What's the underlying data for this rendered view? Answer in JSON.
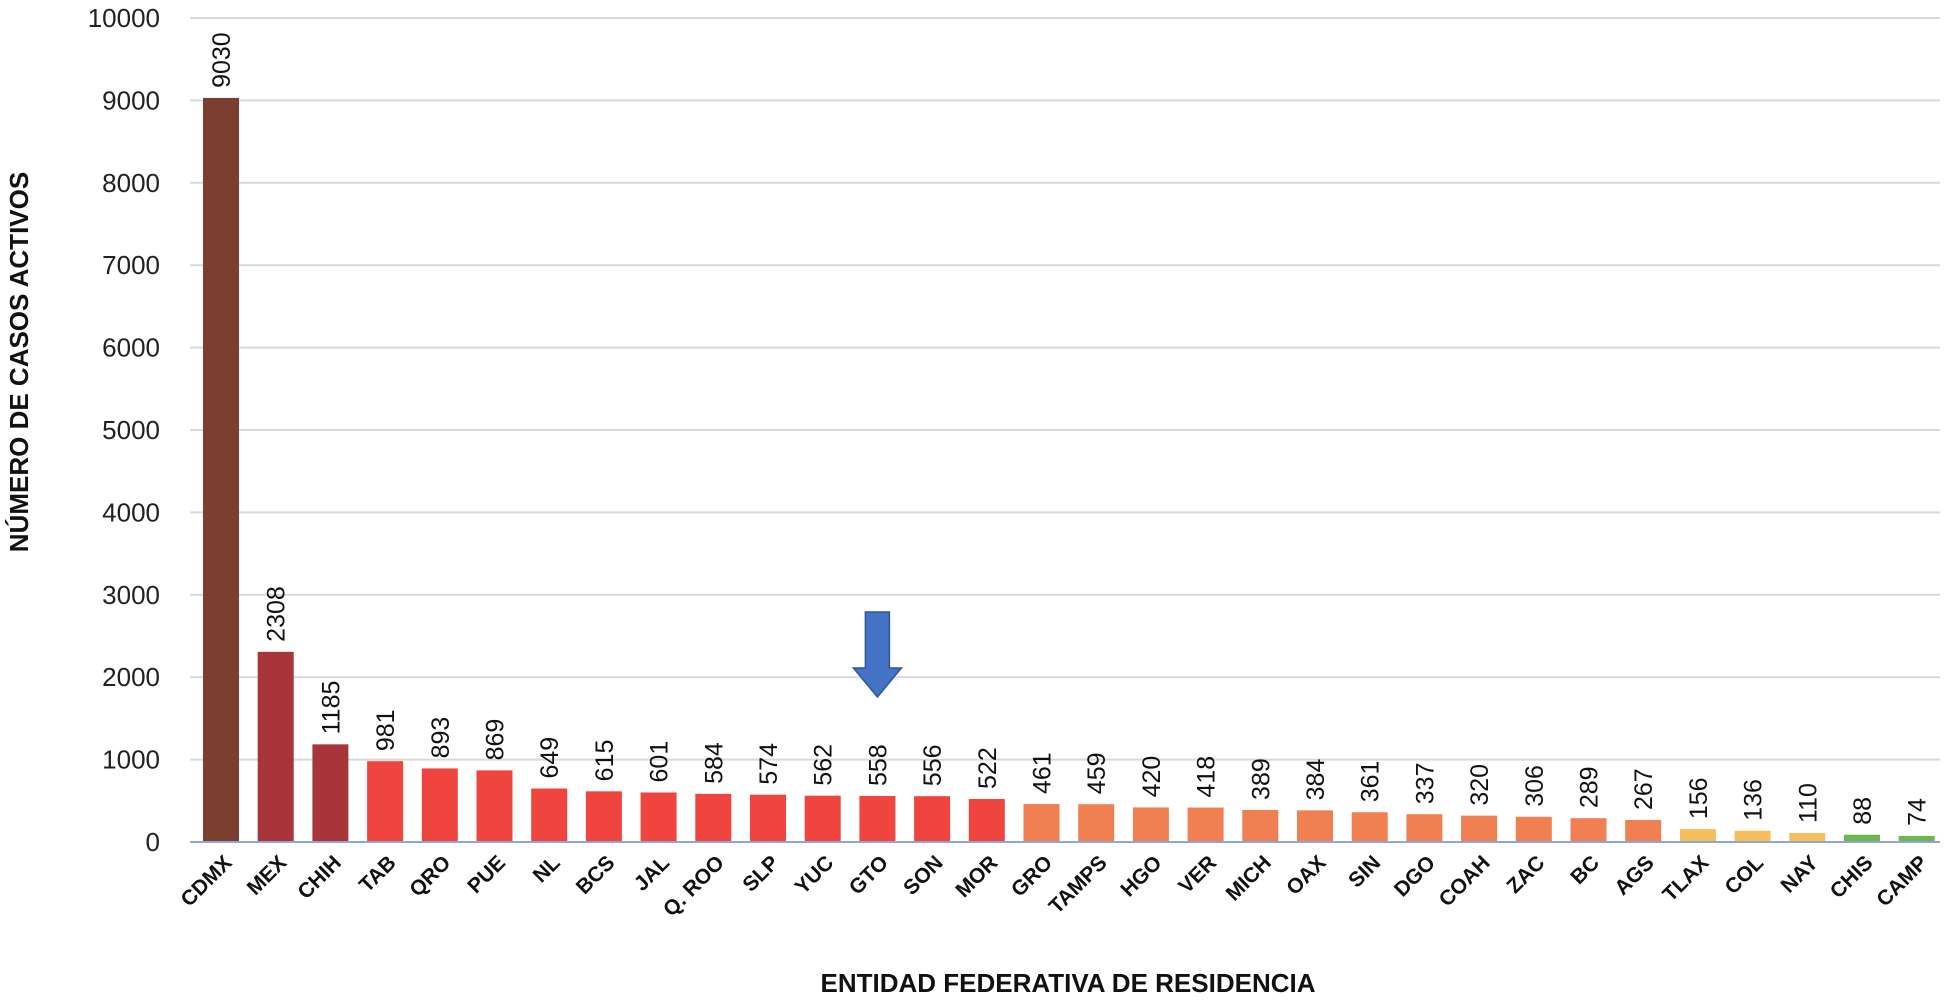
{
  "chart_data": {
    "type": "bar",
    "xlabel": "ENTIDAD FEDERATIVA DE RESIDENCIA",
    "ylabel": "NÚMERO DE CASOS ACTIVOS",
    "ylim": [
      0,
      10000
    ],
    "yticks": [
      0,
      1000,
      2000,
      3000,
      4000,
      5000,
      6000,
      7000,
      8000,
      9000,
      10000
    ],
    "grid": true,
    "categories": [
      "CDMX",
      "MEX",
      "CHIH",
      "TAB",
      "QRO",
      "PUE",
      "NL",
      "BCS",
      "JAL",
      "Q. ROO",
      "SLP",
      "YUC",
      "GTO",
      "SON",
      "MOR",
      "GRO",
      "TAMPS",
      "HGO",
      "VER",
      "MICH",
      "OAX",
      "SIN",
      "DGO",
      "COAH",
      "ZAC",
      "BC",
      "AGS",
      "TLAX",
      "COL",
      "NAY",
      "CHIS",
      "CAMP"
    ],
    "values": [
      9030,
      2308,
      1185,
      981,
      893,
      869,
      649,
      615,
      601,
      584,
      574,
      562,
      558,
      556,
      522,
      461,
      459,
      420,
      418,
      389,
      384,
      361,
      337,
      320,
      306,
      289,
      267,
      156,
      136,
      110,
      88,
      74
    ],
    "colors": [
      "#7B3F2F",
      "#A8353A",
      "#A8353A",
      "#F0453E",
      "#F0453E",
      "#F0453E",
      "#F0453E",
      "#F0453E",
      "#F0453E",
      "#F0453E",
      "#F0453E",
      "#F0453E",
      "#F0453E",
      "#F0453E",
      "#F0453E",
      "#F07F52",
      "#F07F52",
      "#F07F52",
      "#F07F52",
      "#F07F52",
      "#F07F52",
      "#F07F52",
      "#F07F52",
      "#F07F52",
      "#F07F52",
      "#F07F52",
      "#F07F52",
      "#F5BE5A",
      "#F5BE5A",
      "#F5BE5A",
      "#6DB84E",
      "#6DB84E"
    ],
    "annotation": {
      "type": "down-arrow",
      "category": "GTO",
      "color": "#4472C4"
    }
  }
}
